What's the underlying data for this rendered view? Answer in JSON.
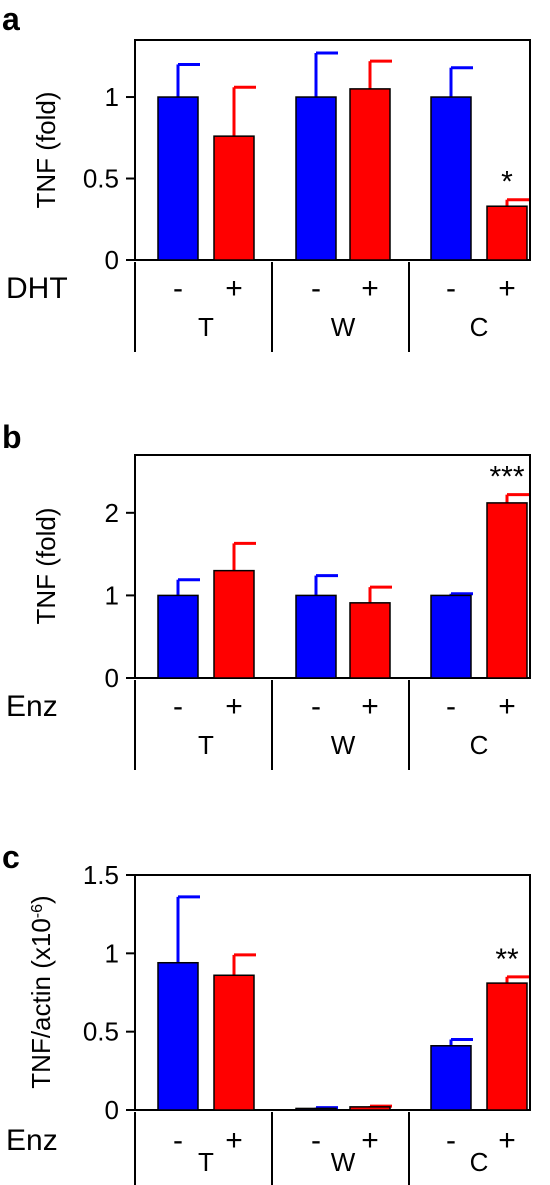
{
  "colors": {
    "minus": "#0000ff",
    "plus": "#ff0000",
    "axis": "#000000"
  },
  "chart_data": [
    {
      "panel": "a",
      "type": "bar",
      "ylabel": "TNF (fold)",
      "ylim": [
        0,
        1.35
      ],
      "yticks": [
        0,
        0.5,
        1
      ],
      "ytick_labels": [
        "0",
        "0.5",
        "1"
      ],
      "condition_label": "DHT",
      "treatments": [
        "-",
        "+"
      ],
      "groups": [
        "T",
        "W",
        "C"
      ],
      "series": [
        {
          "values": [
            1.0,
            1.0,
            1.0
          ],
          "errors": [
            0.2,
            0.27,
            0.18
          ]
        },
        {
          "values": [
            0.76,
            1.05,
            0.33
          ],
          "errors": [
            0.3,
            0.17,
            0.04
          ]
        }
      ],
      "annotations": [
        {
          "group": 2,
          "series": 1,
          "text": "*"
        }
      ]
    },
    {
      "panel": "b",
      "type": "bar",
      "ylabel": "TNF (fold)",
      "ylim": [
        0,
        2.7
      ],
      "yticks": [
        0,
        1,
        2
      ],
      "ytick_labels": [
        "0",
        "1",
        "2"
      ],
      "condition_label": "Enz",
      "treatments": [
        "-",
        "+"
      ],
      "groups": [
        "T",
        "W",
        "C"
      ],
      "series": [
        {
          "values": [
            1.0,
            1.0,
            1.0
          ],
          "errors": [
            0.19,
            0.24,
            0.02
          ]
        },
        {
          "values": [
            1.3,
            0.91,
            2.12
          ],
          "errors": [
            0.33,
            0.19,
            0.1
          ]
        }
      ],
      "annotations": [
        {
          "group": 2,
          "series": 1,
          "text": "***"
        }
      ]
    },
    {
      "panel": "c",
      "type": "bar",
      "ylabel": "TNF/actin (x10",
      "ylabel_sup": "-6",
      "ylabel_end": ")",
      "ylim": [
        0,
        1.5
      ],
      "yticks": [
        0,
        0.5,
        1,
        1.5
      ],
      "ytick_labels": [
        "0",
        "0.5",
        "1",
        "1.5"
      ],
      "condition_label": "Enz",
      "treatments": [
        "-",
        "+"
      ],
      "groups": [
        "T",
        "W",
        "C"
      ],
      "series": [
        {
          "values": [
            0.94,
            0.01,
            0.41
          ],
          "errors": [
            0.42,
            0.005,
            0.04
          ]
        },
        {
          "values": [
            0.86,
            0.02,
            0.81
          ],
          "errors": [
            0.13,
            0.005,
            0.04
          ]
        }
      ],
      "annotations": [
        {
          "group": 2,
          "series": 1,
          "text": "**"
        }
      ]
    }
  ]
}
